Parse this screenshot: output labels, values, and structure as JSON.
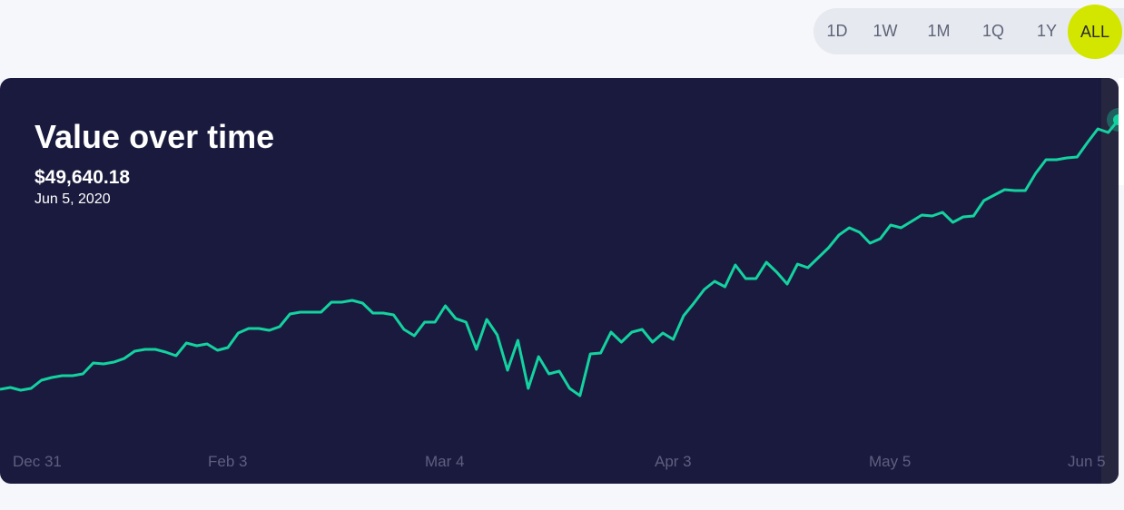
{
  "range_selector": {
    "options": [
      "1D",
      "1W",
      "1M",
      "1Q",
      "1Y",
      "ALL"
    ],
    "selected": "ALL"
  },
  "card": {
    "title": "Value over time",
    "current_value": "$49,640.18",
    "current_date": "Jun 5, 2020"
  },
  "colors": {
    "card_bg": "#1a1a3e",
    "line": "#14d2a0",
    "accent": "#d3e600"
  },
  "chart_data": {
    "type": "line",
    "title": "Value over time",
    "x_range": [
      "Dec 31, 2019",
      "Jun 5, 2020"
    ],
    "x_tick_labels": [
      "Dec 31",
      "Feb 3",
      "Mar 4",
      "Apr 3",
      "May 5",
      "Jun 5"
    ],
    "grid": false,
    "last_value": 49640.18,
    "values_estimated": [
      31820,
      31940,
      31760,
      31880,
      32420,
      32600,
      32720,
      32720,
      32840,
      33560,
      33500,
      33620,
      33860,
      34340,
      34460,
      34460,
      34280,
      34040,
      34880,
      34700,
      34820,
      34400,
      34580,
      35540,
      35840,
      35840,
      35720,
      35960,
      36800,
      36920,
      36920,
      36920,
      37580,
      37580,
      37700,
      37520,
      36860,
      36860,
      36740,
      35780,
      35360,
      36260,
      36260,
      37340,
      36500,
      36260,
      34460,
      36440,
      35420,
      33080,
      35060,
      31880,
      33980,
      32840,
      33020,
      31880,
      31400,
      34160,
      34220,
      35600,
      34940,
      35600,
      35780,
      34940,
      35540,
      35120,
      36680,
      37520,
      38420,
      38960,
      38600,
      40040,
      39140,
      39140,
      40220,
      39560,
      38780,
      40100,
      39860,
      40520,
      41180,
      42020,
      42500,
      42200,
      41480,
      41780,
      42680,
      42500,
      42920,
      43340,
      43280,
      43520,
      42860,
      43220,
      43280,
      44300,
      44660,
      45020,
      44960,
      44960,
      46100,
      47000,
      47000,
      47120,
      47180,
      48140,
      49040,
      48800,
      49640.18
    ]
  }
}
